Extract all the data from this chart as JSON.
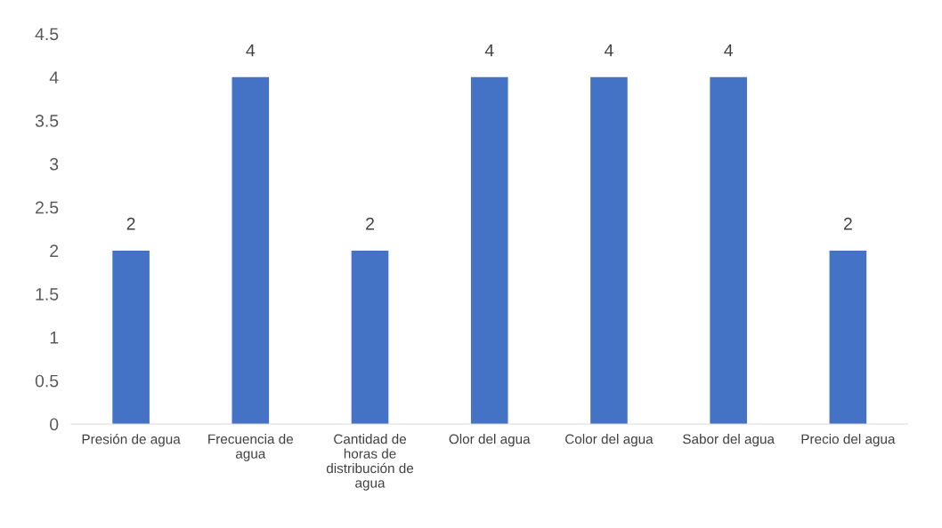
{
  "chart_data": {
    "type": "bar",
    "categories": [
      "Presión de agua",
      "Frecuencia de agua",
      "Cantidad de horas de distribución de agua",
      "Olor del agua",
      "Color del agua",
      "Sabor del agua",
      "Precio del agua"
    ],
    "values": [
      2,
      4,
      2,
      4,
      4,
      4,
      2
    ],
    "color": "#4472c4",
    "ylim": [
      0,
      4.5
    ],
    "yticks": [
      0,
      0.5,
      1,
      1.5,
      2,
      2.5,
      3,
      3.5,
      4,
      4.5
    ],
    "grid": false,
    "legend": false,
    "data_labels": true
  }
}
